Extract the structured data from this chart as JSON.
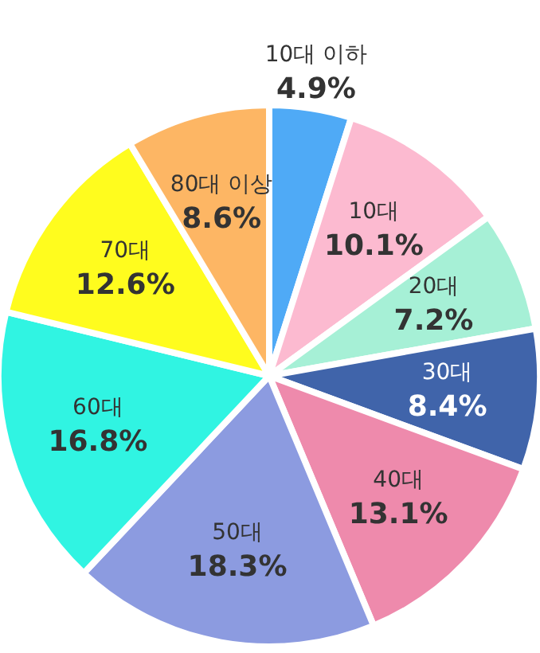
{
  "chart_data": {
    "type": "pie",
    "categories": [
      "10대 이하",
      "10대",
      "20대",
      "30대",
      "40대",
      "50대",
      "60대",
      "70대",
      "80대 이상"
    ],
    "values": [
      4.9,
      10.1,
      7.2,
      8.4,
      13.1,
      18.3,
      16.8,
      12.6,
      8.6
    ],
    "colors": [
      "#4faaf6",
      "#fcbad0",
      "#a6f0d6",
      "#4064aa",
      "#ee8aac",
      "#8c9be0",
      "#30f4e2",
      "#fffc1e",
      "#fdb664"
    ],
    "value_labels": [
      "4.9%",
      "10.1%",
      "7.2%",
      "8.4%",
      "13.1%",
      "18.3%",
      "16.8%",
      "12.6%",
      "8.6%"
    ]
  }
}
